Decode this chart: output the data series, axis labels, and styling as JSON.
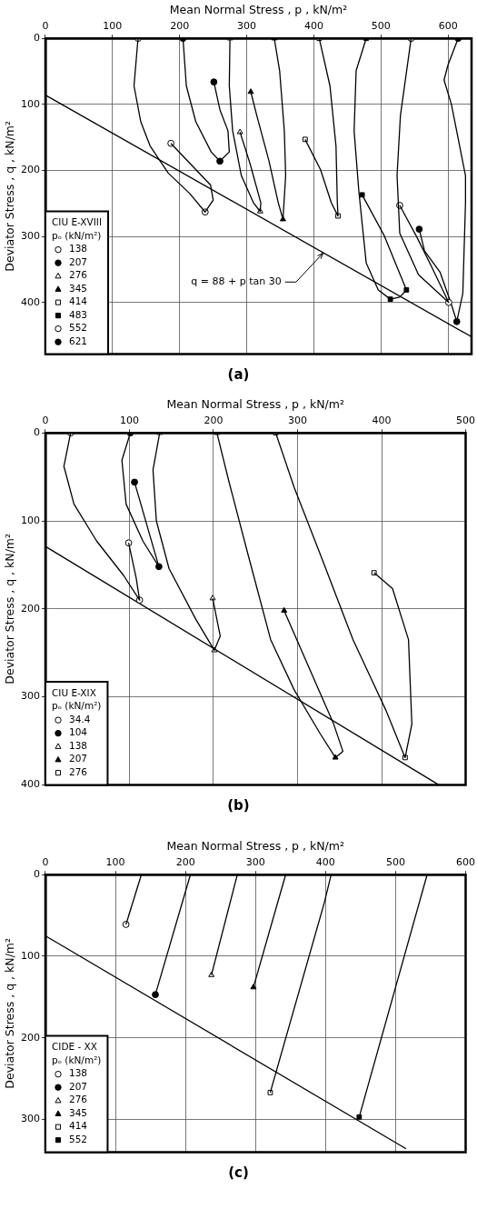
{
  "chart_data": [
    {
      "type": "line",
      "xlabel": "Mean Normal Stress , p , kN/m²",
      "ylabel": "Deviator Stress , q , kN/m²",
      "xlim": [
        0,
        635
      ],
      "xticks": [
        0,
        100,
        200,
        300,
        400,
        500,
        600
      ],
      "ylim": [
        478,
        0
      ],
      "yticks": [
        0,
        100,
        200,
        300,
        400
      ],
      "grid": true,
      "legend": "bottom left",
      "legend_title": "CIU E-XVIII\npₒ (kN/m²)",
      "annotations": [
        {
          "text": "q = 88 + p tan 30",
          "x": 414,
          "y": 325
        },
        "(a)"
      ],
      "series": [
        {
          "type": "line",
          "color": "#000000",
          "x": [
            138,
            132,
            142,
            156,
            183,
            215,
            238,
            250,
            246,
            187
          ],
          "values": [
            0,
            72,
            126,
            163,
            204,
            235,
            263,
            245,
            222,
            159
          ]
        },
        {
          "type": "scatter",
          "name": "138",
          "color": "#ffffff",
          "marker": "circle",
          "x": [
            138,
            238,
            187
          ],
          "values": [
            0,
            263,
            159
          ]
        },
        {
          "type": "line",
          "color": "#000000",
          "x": [
            205,
            210,
            224,
            247,
            260,
            274,
            272,
            260,
            251
          ],
          "values": [
            0,
            72,
            126,
            172,
            186,
            172,
            140,
            108,
            66
          ]
        },
        {
          "type": "scatter",
          "name": "207",
          "color": "#000000",
          "marker": "circle",
          "x": [
            205,
            260,
            251
          ],
          "values": [
            0,
            186,
            66
          ]
        },
        {
          "type": "line",
          "color": "#000000",
          "x": [
            275,
            274,
            279,
            292,
            310,
            320,
            321,
            305,
            290
          ],
          "values": [
            0,
            72,
            140,
            208,
            249,
            262,
            249,
            190,
            142
          ]
        },
        {
          "type": "scatter",
          "name": "276",
          "color": "#ffffff",
          "marker": "triangle",
          "x": [
            275,
            320,
            290
          ],
          "values": [
            0,
            262,
            142
          ]
        },
        {
          "type": "line",
          "color": "#000000",
          "x": [
            341,
            349,
            356,
            358,
            354,
            347,
            333,
            315,
            306
          ],
          "values": [
            0,
            49,
            140,
            208,
            274,
            249,
            185,
            117,
            81
          ]
        },
        {
          "type": "scatter",
          "name": "345",
          "color": "#000000",
          "marker": "triangle",
          "x": [
            341,
            354,
            306
          ],
          "values": [
            0,
            274,
            81
          ]
        },
        {
          "type": "line",
          "color": "#000000",
          "x": [
            408,
            424,
            433,
            435,
            436,
            426,
            410,
            387
          ],
          "values": [
            0,
            72,
            163,
            249,
            269,
            249,
            199,
            153
          ]
        },
        {
          "type": "scatter",
          "name": "414",
          "color": "#ffffff",
          "marker": "square",
          "x": [
            408,
            436,
            387
          ],
          "values": [
            0,
            269,
            153
          ]
        },
        {
          "type": "line",
          "color": "#000000",
          "x": [
            478,
            463,
            460,
            467,
            478,
            496,
            514,
            528,
            538,
            505,
            472
          ],
          "values": [
            0,
            49,
            140,
            231,
            340,
            381,
            395,
            392,
            381,
            299,
            237
          ]
        },
        {
          "type": "scatter",
          "name": "483",
          "color": "#000000",
          "marker": "square",
          "x": [
            478,
            514,
            538,
            472
          ],
          "values": [
            0,
            395,
            381,
            237
          ]
        },
        {
          "type": "line",
          "color": "#000000",
          "x": [
            545,
            529,
            524,
            528,
            556,
            601,
            575,
            553,
            528
          ],
          "values": [
            0,
            117,
            208,
            295,
            358,
            400,
            345,
            300,
            253
          ]
        },
        {
          "type": "scatter",
          "name": "552",
          "color": "#ffffff",
          "marker": "circle",
          "x": [
            545,
            601,
            528
          ],
          "values": [
            0,
            400,
            253
          ]
        },
        {
          "type": "line",
          "color": "#000000",
          "x": [
            615,
            600,
            594,
            605,
            626,
            626,
            622,
            613,
            604,
            588,
            565,
            557
          ],
          "values": [
            0,
            40,
            63,
            100,
            208,
            249,
            386,
            429,
            400,
            354,
            322,
            289
          ]
        },
        {
          "type": "scatter",
          "name": "621",
          "color": "#000000",
          "marker": "circle",
          "x": [
            615,
            613,
            557
          ],
          "values": [
            0,
            429,
            289
          ]
        },
        {
          "type": "line",
          "color": "#000000",
          "x": [
            0,
            635
          ],
          "values": [
            86,
            452
          ]
        }
      ]
    },
    {
      "type": "line",
      "xlabel": "Mean Normal Stress , p , kN/m²",
      "ylabel": "Deviator Stress , q , kN/m²",
      "xlim": [
        0,
        500
      ],
      "xticks": [
        0,
        100,
        200,
        300,
        400,
        500
      ],
      "ylim": [
        400,
        0
      ],
      "yticks": [
        0,
        100,
        200,
        300,
        400
      ],
      "grid": true,
      "legend": "bottom left",
      "legend_title": "CIU E-XIX\npₒ (kN/m²)",
      "annotations": [
        "(b)"
      ],
      "series": [
        {
          "type": "line",
          "color": "#000000",
          "x": [
            30,
            22,
            34,
            61,
            93,
            112,
            108,
            99
          ],
          "values": [
            0,
            38,
            81,
            123,
            162,
            190,
            165,
            125
          ]
        },
        {
          "type": "scatter",
          "name": "34.4",
          "color": "#ffffff",
          "marker": "circle",
          "x": [
            30,
            112,
            99
          ],
          "values": [
            0,
            190,
            125
          ]
        },
        {
          "type": "line",
          "color": "#000000",
          "x": [
            101,
            91,
            96,
            116,
            135,
            106
          ],
          "values": [
            0,
            31,
            81,
            123,
            152,
            56
          ]
        },
        {
          "type": "scatter",
          "name": "104",
          "color": "#000000",
          "marker": "circle",
          "x": [
            101,
            135,
            106
          ],
          "values": [
            0,
            152,
            56
          ]
        },
        {
          "type": "line",
          "color": "#000000",
          "x": [
            136,
            128,
            132,
            147,
            179,
            201,
            208,
            199
          ],
          "values": [
            0,
            42,
            100,
            154,
            212,
            247,
            231,
            188
          ]
        },
        {
          "type": "scatter",
          "name": "138",
          "color": "#ffffff",
          "marker": "triangle",
          "x": [
            136,
            201,
            199
          ],
          "values": [
            0,
            247,
            188
          ]
        },
        {
          "type": "line",
          "color": "#000000",
          "x": [
            204,
            218,
            241,
            268,
            296,
            327,
            345,
            354,
            343,
            284
          ],
          "values": [
            0,
            54,
            138,
            235,
            292,
            342,
            369,
            362,
            331,
            202
          ]
        },
        {
          "type": "scatter",
          "name": "207",
          "color": "#000000",
          "marker": "triangle",
          "x": [
            204,
            345,
            284
          ],
          "values": [
            0,
            369,
            202
          ]
        },
        {
          "type": "line",
          "color": "#000000",
          "x": [
            274,
            296,
            327,
            366,
            405,
            428,
            436,
            432,
            413,
            391
          ],
          "values": [
            0,
            62,
            138,
            235,
            315,
            369,
            331,
            235,
            177,
            159
          ]
        },
        {
          "type": "scatter",
          "name": "276",
          "color": "#ffffff",
          "marker": "square",
          "x": [
            274,
            428,
            391
          ],
          "values": [
            0,
            369,
            159
          ]
        },
        {
          "type": "line",
          "color": "#000000",
          "x": [
            0,
            468
          ],
          "values": [
            129,
            400
          ]
        }
      ]
    },
    {
      "type": "line",
      "xlabel": "Mean Normal Stress , p , kN/m²",
      "ylabel": "Deviator Stress , q , kN/m²",
      "xlim": [
        0,
        600
      ],
      "xticks": [
        0,
        100,
        200,
        300,
        400,
        500,
        600
      ],
      "ylim": [
        340,
        0
      ],
      "yticks": [
        0,
        100,
        200,
        300
      ],
      "grid": true,
      "legend": "bottom left",
      "legend_title": "CIDE - XX\npₒ (kN/m²)",
      "annotations": [
        "(c)"
      ],
      "series": [
        {
          "type": "line",
          "color": "#000000",
          "x": [
            137,
            115
          ],
          "values": [
            0,
            61
          ]
        },
        {
          "type": "scatter",
          "name": "138",
          "color": "#ffffff",
          "marker": "circle",
          "x": [
            115
          ],
          "values": [
            61
          ]
        },
        {
          "type": "line",
          "color": "#000000",
          "x": [
            207,
            157
          ],
          "values": [
            0,
            147
          ]
        },
        {
          "type": "scatter",
          "name": "207",
          "color": "#000000",
          "marker": "circle",
          "x": [
            157
          ],
          "values": [
            147
          ]
        },
        {
          "type": "line",
          "color": "#000000",
          "x": [
            274,
            237
          ],
          "values": [
            0,
            123
          ]
        },
        {
          "type": "scatter",
          "name": "276",
          "color": "#ffffff",
          "marker": "triangle",
          "x": [
            237
          ],
          "values": [
            123
          ]
        },
        {
          "type": "line",
          "color": "#000000",
          "x": [
            343,
            297
          ],
          "values": [
            0,
            138
          ]
        },
        {
          "type": "scatter",
          "name": "345",
          "color": "#000000",
          "marker": "triangle",
          "x": [
            297
          ],
          "values": [
            138
          ]
        },
        {
          "type": "line",
          "color": "#000000",
          "x": [
            408,
            398,
            321
          ],
          "values": [
            0,
            35,
            267
          ]
        },
        {
          "type": "scatter",
          "name": "414",
          "color": "#ffffff",
          "marker": "square",
          "x": [
            321
          ],
          "values": [
            267
          ]
        },
        {
          "type": "line",
          "color": "#000000",
          "x": [
            545,
            448
          ],
          "values": [
            0,
            297
          ]
        },
        {
          "type": "scatter",
          "name": "552",
          "color": "#000000",
          "marker": "square",
          "x": [
            448
          ],
          "values": [
            297
          ]
        },
        {
          "type": "line",
          "color": "#000000",
          "x": [
            0,
            515
          ],
          "values": [
            75,
            336
          ]
        }
      ]
    }
  ]
}
